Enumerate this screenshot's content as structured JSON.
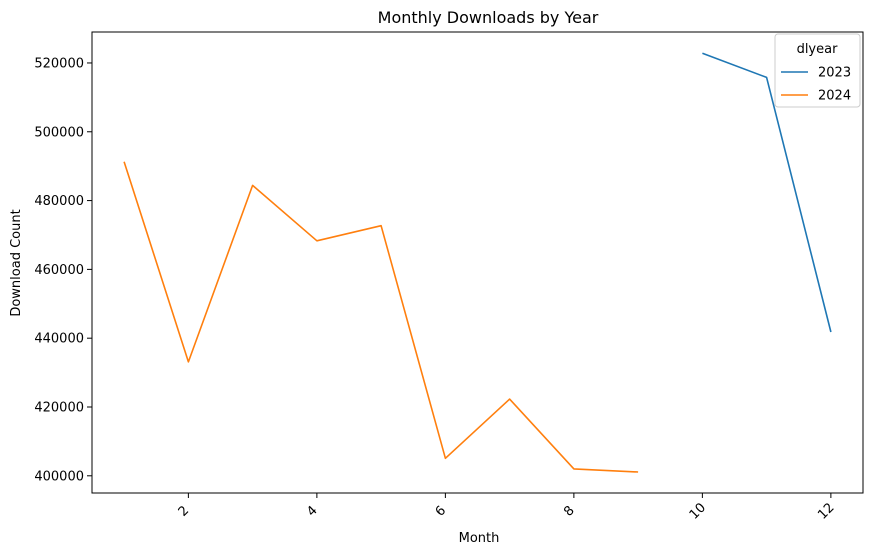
{
  "chart_data": {
    "type": "line",
    "title": "Monthly Downloads by Year",
    "xlabel": "Month",
    "ylabel": "Download Count",
    "xlim": [
      0.5,
      12.5
    ],
    "ylim": [
      395000,
      529000
    ],
    "x_ticks": [
      2,
      4,
      6,
      8,
      10,
      12
    ],
    "y_ticks": [
      400000,
      420000,
      440000,
      460000,
      480000,
      500000,
      520000
    ],
    "grid": false,
    "legend": {
      "title": "dlyear",
      "placement": "top-right"
    },
    "series": [
      {
        "name": "2023",
        "color": "#1f77b4",
        "x": [
          10,
          11,
          12
        ],
        "y": [
          522800,
          515800,
          441800
        ]
      },
      {
        "name": "2024",
        "color": "#ff7f0e",
        "x": [
          1,
          2,
          3,
          4,
          5,
          6,
          7,
          8,
          9
        ],
        "y": [
          491300,
          433100,
          484400,
          468300,
          472700,
          405100,
          422300,
          402000,
          401100
        ]
      }
    ]
  }
}
